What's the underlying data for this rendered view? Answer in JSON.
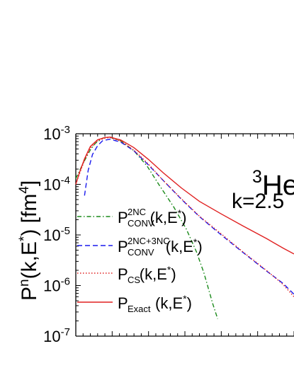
{
  "chart_data": {
    "type": "line",
    "ylabel": "P",
    "ylabel_sup": "n",
    "ylabel_rest": "(k,E",
    "ylabel_star": "*",
    "ylabel_unit": ") [fm",
    "ylabel_unit_sup": "4",
    "ylabel_close": "]",
    "y_scale": "log",
    "ylim": [
      1e-07,
      0.001
    ],
    "xlim": [
      0,
      300
    ],
    "y_ticks": [
      {
        "value": 0.001,
        "base": "10",
        "exp": "-3"
      },
      {
        "value": 0.0001,
        "base": "10",
        "exp": "-4"
      },
      {
        "value": 1e-05,
        "base": "10",
        "exp": "-5"
      },
      {
        "value": 1e-06,
        "base": "10",
        "exp": "-6"
      },
      {
        "value": 1e-07,
        "base": "10",
        "exp": "-7"
      }
    ],
    "annotations": {
      "nucleus_sup": "3",
      "nucleus": "He",
      "momentum": "k=2.5"
    },
    "series": [
      {
        "key": "conv2nc",
        "legend": {
          "main": "P",
          "sup": "2NC",
          "sub": "CONV",
          "arg": "(k,E",
          "star": "*",
          "close": ")"
        },
        "color": "#1a8a1a",
        "dash": "6,3,1.5,3",
        "x": [
          0,
          10,
          20,
          27,
          37,
          47,
          62,
          80,
          98,
          115,
          135,
          152,
          166,
          176,
          182,
          188,
          195
        ],
        "y": [
          0.00013,
          0.00026,
          0.00048,
          0.00065,
          0.00082,
          0.00086,
          0.00072,
          0.00046,
          0.00023,
          9.5e-05,
          3.5e-05,
          1.3e-05,
          4.6e-06,
          1.8e-06,
          9e-07,
          4.5e-07,
          2.2e-07
        ]
      },
      {
        "key": "conv2nc3nc",
        "legend": {
          "main": "P",
          "sup": "2NC+3NC",
          "sub": "CONV",
          "arg": "(k,E",
          "star": "*",
          "close": ")"
        },
        "color": "#1a1aee",
        "dash": "7,4",
        "x": [
          12,
          17,
          23,
          30,
          37,
          47,
          62,
          80,
          100,
          120,
          145,
          170,
          200,
          230,
          262,
          285,
          300
        ],
        "y": [
          6e-05,
          0.00019,
          0.00039,
          0.00058,
          0.00073,
          0.00078,
          0.00068,
          0.00046,
          0.00024,
          0.00012,
          5.1e-05,
          2.3e-05,
          1e-05,
          4.5e-06,
          1.95e-06,
          1.1e-06,
          6.7e-07
        ]
      },
      {
        "key": "cs",
        "legend": {
          "main": "P",
          "sup": "",
          "sub": "CS",
          "arg": "(k,E",
          "star": "*",
          "close": ")"
        },
        "color": "#e02020",
        "dash": "1.5,2.5",
        "x": [
          0,
          5,
          12,
          20,
          30,
          40,
          47,
          62,
          80,
          100,
          120,
          145,
          170,
          200,
          230,
          262,
          285,
          300
        ],
        "y": [
          0.0001,
          0.00016,
          0.0003,
          0.00052,
          0.00073,
          0.00082,
          0.00084,
          0.00071,
          0.00047,
          0.00025,
          0.00012,
          5.2e-05,
          2.35e-05,
          1.05e-05,
          4.6e-06,
          2e-06,
          1.05e-06,
          6e-07
        ]
      },
      {
        "key": "exact",
        "legend": {
          "main": "P",
          "sup": "",
          "sub": "Exact",
          "arg": "(k,E",
          "star": "*",
          "close": ")"
        },
        "color": "#e02020",
        "dash": "",
        "x": [
          0,
          5,
          12,
          20,
          30,
          40,
          47,
          62,
          80,
          100,
          120,
          145,
          170,
          200,
          230,
          262,
          285,
          300
        ],
        "y": [
          0.0001,
          0.00017,
          0.00032,
          0.00056,
          0.00076,
          0.00084,
          0.00086,
          0.00075,
          0.00053,
          0.00031,
          0.00017,
          8.5e-05,
          4.6e-05,
          2.6e-05,
          1.5e-05,
          8.5e-06,
          5.5e-06,
          4.2e-06
        ]
      }
    ]
  }
}
